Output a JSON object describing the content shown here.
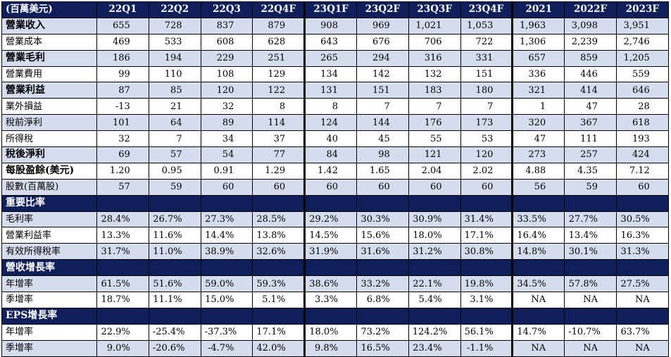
{
  "header": [
    "(百萬美元)",
    "22Q1",
    "22Q2",
    "22Q3",
    "22Q4F",
    "23Q1F",
    "23Q2F",
    "23Q3F",
    "23Q4F",
    "2021",
    "2022F",
    "2023F"
  ],
  "rows": [
    {
      "label": "營業收入",
      "bold": true,
      "shade": "blue",
      "values": [
        "655",
        "728",
        "837",
        "879",
        "908",
        "969",
        "1,021",
        "1,053",
        "1,963",
        "3,098",
        "3,951"
      ]
    },
    {
      "label": "營業成本",
      "bold": false,
      "shade": "white",
      "values": [
        "469",
        "533",
        "608",
        "628",
        "643",
        "676",
        "706",
        "722",
        "1,306",
        "2,239",
        "2,746"
      ]
    },
    {
      "label": "營業毛利",
      "bold": true,
      "shade": "blue",
      "values": [
        "186",
        "194",
        "229",
        "251",
        "265",
        "294",
        "316",
        "331",
        "657",
        "859",
        "1,205"
      ]
    },
    {
      "label": "營業費用",
      "bold": false,
      "shade": "white",
      "values": [
        "99",
        "110",
        "108",
        "129",
        "134",
        "142",
        "132",
        "151",
        "336",
        "446",
        "559"
      ]
    },
    {
      "label": "營業利益",
      "bold": true,
      "shade": "blue",
      "values": [
        "87",
        "85",
        "120",
        "122",
        "131",
        "151",
        "183",
        "180",
        "321",
        "414",
        "646"
      ]
    },
    {
      "label": "業外損益",
      "bold": false,
      "shade": "white",
      "values": [
        "-13",
        "21",
        "32",
        "8",
        "8",
        "7",
        "7",
        "7",
        "1",
        "47",
        "28"
      ]
    },
    {
      "label": "稅前淨利",
      "bold": false,
      "shade": "blue",
      "values": [
        "101",
        "64",
        "89",
        "114",
        "124",
        "144",
        "176",
        "173",
        "320",
        "367",
        "618"
      ]
    },
    {
      "label": "所得稅",
      "bold": false,
      "shade": "white",
      "values": [
        "32",
        "7",
        "34",
        "37",
        "40",
        "45",
        "55",
        "53",
        "47",
        "111",
        "193"
      ]
    },
    {
      "label": "稅後淨利",
      "bold": true,
      "shade": "blue",
      "values": [
        "69",
        "57",
        "54",
        "77",
        "84",
        "98",
        "121",
        "120",
        "273",
        "257",
        "424"
      ]
    },
    {
      "label": "每股盈餘(美元)",
      "bold": true,
      "shade": "white",
      "values": [
        "1.20",
        "0.95",
        "0.91",
        "1.29",
        "1.42",
        "1.65",
        "2.04",
        "2.02",
        "4.88",
        "4.35",
        "7.12"
      ]
    },
    {
      "label": "股數(百萬股)",
      "bold": false,
      "shade": "blue",
      "values": [
        "57",
        "59",
        "60",
        "60",
        "60",
        "60",
        "60",
        "60",
        "56",
        "59",
        "60"
      ]
    },
    {
      "section": "重要比率"
    },
    {
      "label": "毛利率",
      "bold": false,
      "shade": "blue",
      "values": [
        "28.4%",
        "26.7%",
        "27.3%",
        "28.5%",
        "29.2%",
        "30.3%",
        "30.9%",
        "31.4%",
        "33.5%",
        "27.7%",
        "30.5%"
      ]
    },
    {
      "label": "營業利益率",
      "bold": false,
      "shade": "white",
      "values": [
        "13.3%",
        "11.6%",
        "14.4%",
        "13.8%",
        "14.5%",
        "15.6%",
        "18.0%",
        "17.1%",
        "16.4%",
        "13.4%",
        "16.3%"
      ]
    },
    {
      "label": "有效所得稅率",
      "bold": false,
      "shade": "blue",
      "values": [
        "31.7%",
        "11.0%",
        "38.9%",
        "32.6%",
        "31.9%",
        "31.6%",
        "31.2%",
        "30.8%",
        "14.8%",
        "30.1%",
        "31.3%"
      ]
    },
    {
      "section": "營收增長率"
    },
    {
      "label": "年增率",
      "bold": false,
      "shade": "blue",
      "values": [
        "61.5%",
        "51.6%",
        "59.0%",
        "59.3%",
        "38.6%",
        "33.2%",
        "22.1%",
        "19.8%",
        "34.5%",
        "57.8%",
        "27.5%"
      ]
    },
    {
      "label": "季增率",
      "bold": false,
      "shade": "white",
      "values": [
        "18.7%",
        "11.1%",
        "15.0%",
        "5.1%",
        "3.3%",
        "6.8%",
        "5.4%",
        "3.1%",
        "NA",
        "NA",
        "NA"
      ]
    },
    {
      "section": "EPS增長率"
    },
    {
      "label": "年增率",
      "bold": false,
      "shade": "white",
      "values": [
        "22.9%",
        "-25.4%",
        "-37.3%",
        "17.1%",
        "18.0%",
        "73.2%",
        "124.2%",
        "56.1%",
        "14.7%",
        "-10.7%",
        "63.7%"
      ]
    },
    {
      "label": "季增率",
      "bold": false,
      "shade": "blue",
      "values": [
        "9.0%",
        "-20.6%",
        "-4.7%",
        "42.0%",
        "9.8%",
        "16.5%",
        "23.4%",
        "-1.1%",
        "NA",
        "NA",
        "NA"
      ]
    }
  ]
}
